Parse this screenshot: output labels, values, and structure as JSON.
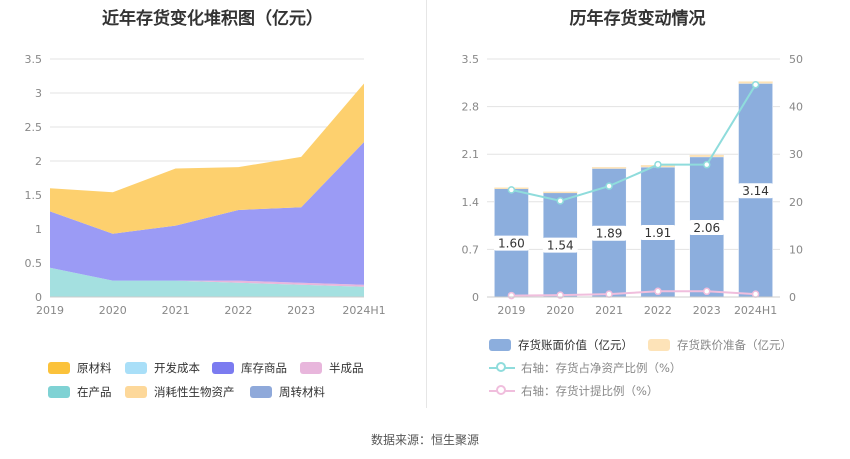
{
  "left": {
    "title": "近年存货变化堆积图（亿元）"
  },
  "right": {
    "title": "历年存货变动情况"
  },
  "source": "数据来源：恒生聚源",
  "chart_data": [
    {
      "type": "area",
      "title": "近年存货变化堆积图（亿元）",
      "categories": [
        "2019",
        "2020",
        "2021",
        "2022",
        "2023",
        "2024H1"
      ],
      "ylim": [
        0,
        3.5
      ],
      "yticks": [
        "0",
        "0.5",
        "1",
        "1.5",
        "2",
        "2.5",
        "3",
        "3.5"
      ],
      "grid": true,
      "legend_position": "bottom",
      "series": [
        {
          "name": "在产品",
          "color": "#a4e0e0",
          "values": [
            0.43,
            0.24,
            0.24,
            0.21,
            0.18,
            0.15
          ]
        },
        {
          "name": "半成品",
          "color": "#e8b6dc",
          "values": [
            0.0,
            0.0,
            0.0,
            0.03,
            0.03,
            0.03
          ]
        },
        {
          "name": "库存商品",
          "color": "#9b9bf5",
          "values": [
            0.83,
            0.69,
            0.81,
            1.04,
            1.11,
            2.1
          ]
        },
        {
          "name": "原材料",
          "color": "#fdd06e",
          "values": [
            0.34,
            0.61,
            0.84,
            0.63,
            0.74,
            0.86
          ]
        },
        {
          "name": "开发成本",
          "color": "#a9dff8",
          "values": [
            0,
            0,
            0,
            0,
            0,
            0
          ]
        },
        {
          "name": "消耗性生物资产",
          "color": "#fdd89a",
          "values": [
            0,
            0,
            0,
            0,
            0,
            0
          ]
        },
        {
          "name": "周转材料",
          "color": "#8fa9da",
          "values": [
            0,
            0,
            0,
            0,
            0,
            0
          ]
        }
      ],
      "legend": [
        {
          "name": "原材料",
          "color": "#fbc23b"
        },
        {
          "name": "开发成本",
          "color": "#a9dff8"
        },
        {
          "name": "库存商品",
          "color": "#7b7bf0"
        },
        {
          "name": "半成品",
          "color": "#e8b6dc"
        },
        {
          "name": "在产品",
          "color": "#7fd2d4"
        },
        {
          "name": "消耗性生物资产",
          "color": "#fdd89a"
        },
        {
          "name": "周转材料",
          "color": "#8fa9da"
        }
      ]
    },
    {
      "type": "bar",
      "title": "历年存货变动情况",
      "categories": [
        "2019",
        "2020",
        "2021",
        "2022",
        "2023",
        "2024H1"
      ],
      "ylim": [
        0,
        3.5
      ],
      "yticks": [
        "0",
        "0.7",
        "1.4",
        "2.1",
        "2.8",
        "3.5"
      ],
      "y2lim": [
        0,
        50
      ],
      "y2ticks": [
        "0",
        "10",
        "20",
        "30",
        "40",
        "50"
      ],
      "grid": true,
      "legend_position": "bottom",
      "series": [
        {
          "name": "存货账面价值（亿元）",
          "color": "#8caedd",
          "axis": "left",
          "values": [
            1.6,
            1.54,
            1.89,
            1.91,
            2.06,
            3.14
          ],
          "labels": [
            "1.60",
            "1.54",
            "1.89",
            "1.91",
            "2.06",
            "3.14"
          ]
        },
        {
          "name": "存货跌价准备（亿元）",
          "color": "#fde3b8",
          "axis": "left",
          "values": [
            0.01,
            0.01,
            0.02,
            0.03,
            0.03,
            0.03
          ]
        },
        {
          "name": "右轴：存货占净资产比例（%）",
          "color": "#8fdcdc",
          "axis": "right",
          "kind": "line",
          "values": [
            22.5,
            20.2,
            23.3,
            27.8,
            27.8,
            44.6
          ]
        },
        {
          "name": "右轴：存货计提比例（%）",
          "color": "#f0bedd",
          "axis": "right",
          "kind": "line",
          "values": [
            0.3,
            0.4,
            0.6,
            1.2,
            1.2,
            0.6
          ]
        }
      ]
    }
  ]
}
